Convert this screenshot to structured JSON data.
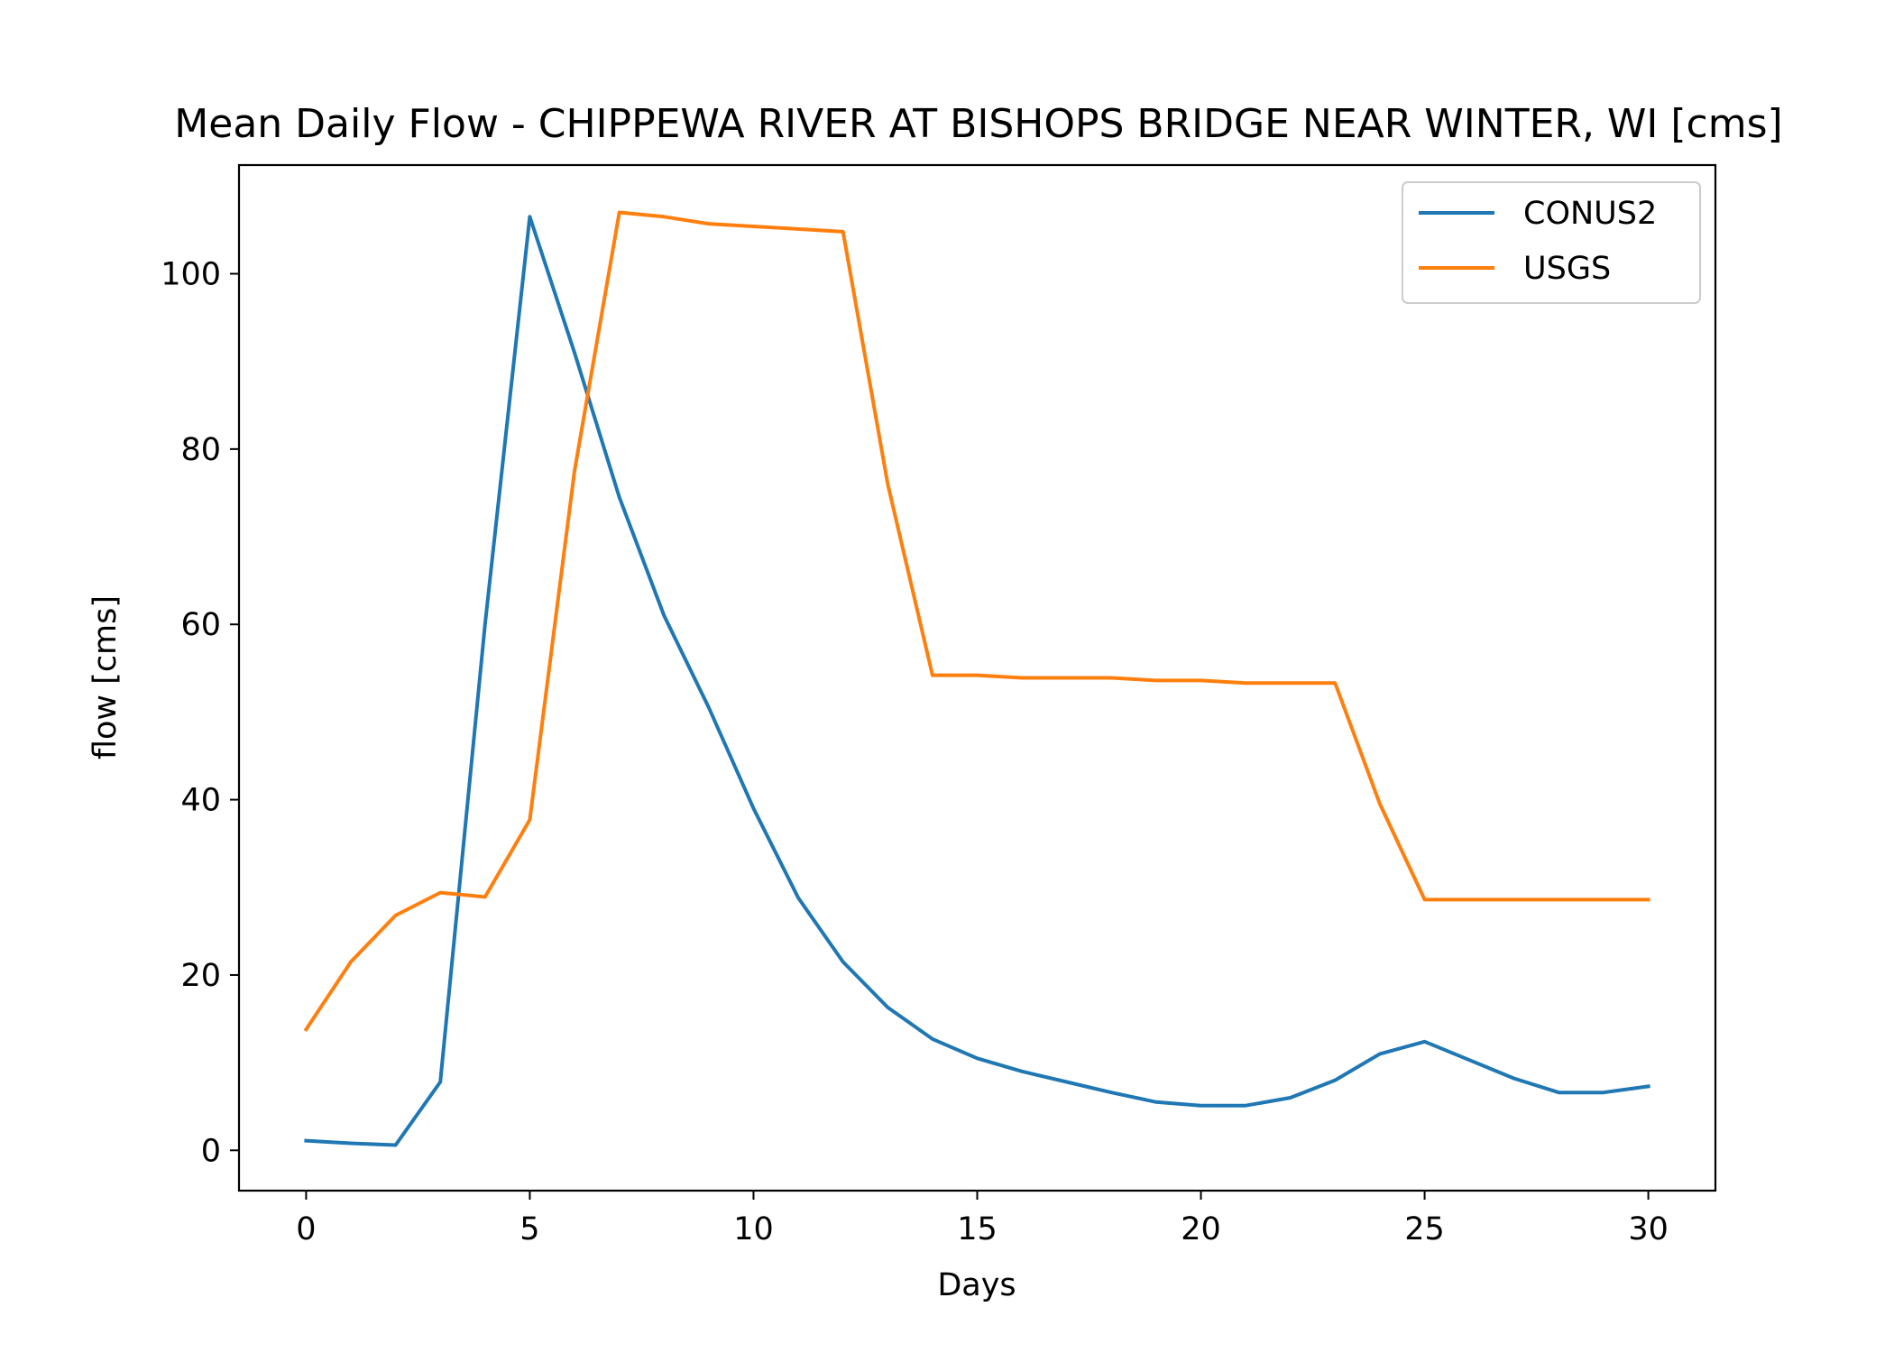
{
  "chart_data": {
    "type": "line",
    "title": "Mean Daily Flow - CHIPPEWA RIVER AT BISHOPS BRIDGE NEAR WINTER, WI [cms]",
    "xlabel": "Days",
    "ylabel": "flow [cms]",
    "xlim": [
      -1.5,
      31.5
    ],
    "ylim": [
      -4.6,
      112.4
    ],
    "xticks": [
      0,
      5,
      10,
      15,
      20,
      25,
      30
    ],
    "yticks": [
      0,
      20,
      40,
      60,
      80,
      100
    ],
    "grid": false,
    "legend_position": "top-right",
    "x": [
      0,
      1,
      2,
      3,
      4,
      5,
      6,
      7,
      8,
      9,
      10,
      11,
      12,
      13,
      14,
      15,
      16,
      17,
      18,
      19,
      20,
      21,
      22,
      23,
      24,
      25,
      26,
      27,
      28,
      29,
      30
    ],
    "series": [
      {
        "name": "CONUS2",
        "color": "#1f77b4",
        "values": [
          1.1,
          0.8,
          0.6,
          7.8,
          60.0,
          106.5,
          91.0,
          74.5,
          61.0,
          50.5,
          39.0,
          28.8,
          21.5,
          16.3,
          12.7,
          10.5,
          9.0,
          7.8,
          6.6,
          5.5,
          5.1,
          5.1,
          6.0,
          8.0,
          11.0,
          12.4,
          10.3,
          8.2,
          6.6,
          6.6,
          7.3
        ]
      },
      {
        "name": "USGS",
        "color": "#ff7f0e",
        "values": [
          13.8,
          21.5,
          26.8,
          29.4,
          28.9,
          37.7,
          77.5,
          107.0,
          106.5,
          105.7,
          105.4,
          105.1,
          104.8,
          76.0,
          54.2,
          54.2,
          53.9,
          53.9,
          53.9,
          53.6,
          53.6,
          53.3,
          53.3,
          53.3,
          39.5,
          28.6,
          28.6,
          28.6,
          28.6,
          28.6,
          28.6
        ]
      }
    ]
  }
}
